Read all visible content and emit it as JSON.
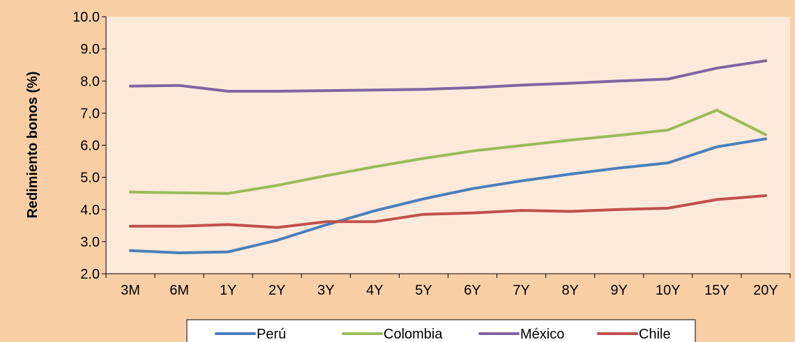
{
  "chart_data": {
    "type": "line",
    "title": "",
    "xlabel": "",
    "ylabel": "Redimiento bonos (%)",
    "ylim": [
      2.0,
      10.0
    ],
    "yticks": [
      "2.0",
      "3.0",
      "4.0",
      "5.0",
      "6.0",
      "7.0",
      "8.0",
      "9.0",
      "10.0"
    ],
    "categories": [
      "3M",
      "6M",
      "1Y",
      "2Y",
      "3Y",
      "4Y",
      "5Y",
      "6Y",
      "7Y",
      "8Y",
      "9Y",
      "10Y",
      "15Y",
      "20Y"
    ],
    "grid": false,
    "legend_position": "bottom",
    "colors": {
      "page_background": "#FBCFA5",
      "plot_background": "#FDEADA",
      "legend_background": "#FFFFFF"
    },
    "series": [
      {
        "name": "Perú",
        "color": "#4A7EBB",
        "values": [
          2.72,
          2.65,
          2.68,
          3.04,
          3.52,
          3.96,
          4.33,
          4.65,
          4.89,
          5.1,
          5.29,
          5.45,
          5.95,
          6.2
        ]
      },
      {
        "name": "Colombia",
        "color": "#9BBB59",
        "values": [
          4.54,
          4.52,
          4.5,
          4.75,
          5.05,
          5.33,
          5.59,
          5.82,
          5.99,
          6.16,
          6.31,
          6.47,
          7.09,
          6.33
        ]
      },
      {
        "name": "México",
        "color": "#8064A2",
        "values": [
          7.84,
          7.86,
          7.68,
          7.68,
          7.7,
          7.72,
          7.74,
          7.79,
          7.87,
          7.93,
          8.0,
          8.06,
          8.4,
          8.63
        ]
      },
      {
        "name": "Chile",
        "color": "#C0504D",
        "values": [
          3.48,
          3.48,
          3.53,
          3.44,
          3.62,
          3.62,
          3.85,
          3.89,
          3.97,
          3.94,
          4.0,
          4.04,
          4.31,
          4.43
        ]
      }
    ]
  }
}
